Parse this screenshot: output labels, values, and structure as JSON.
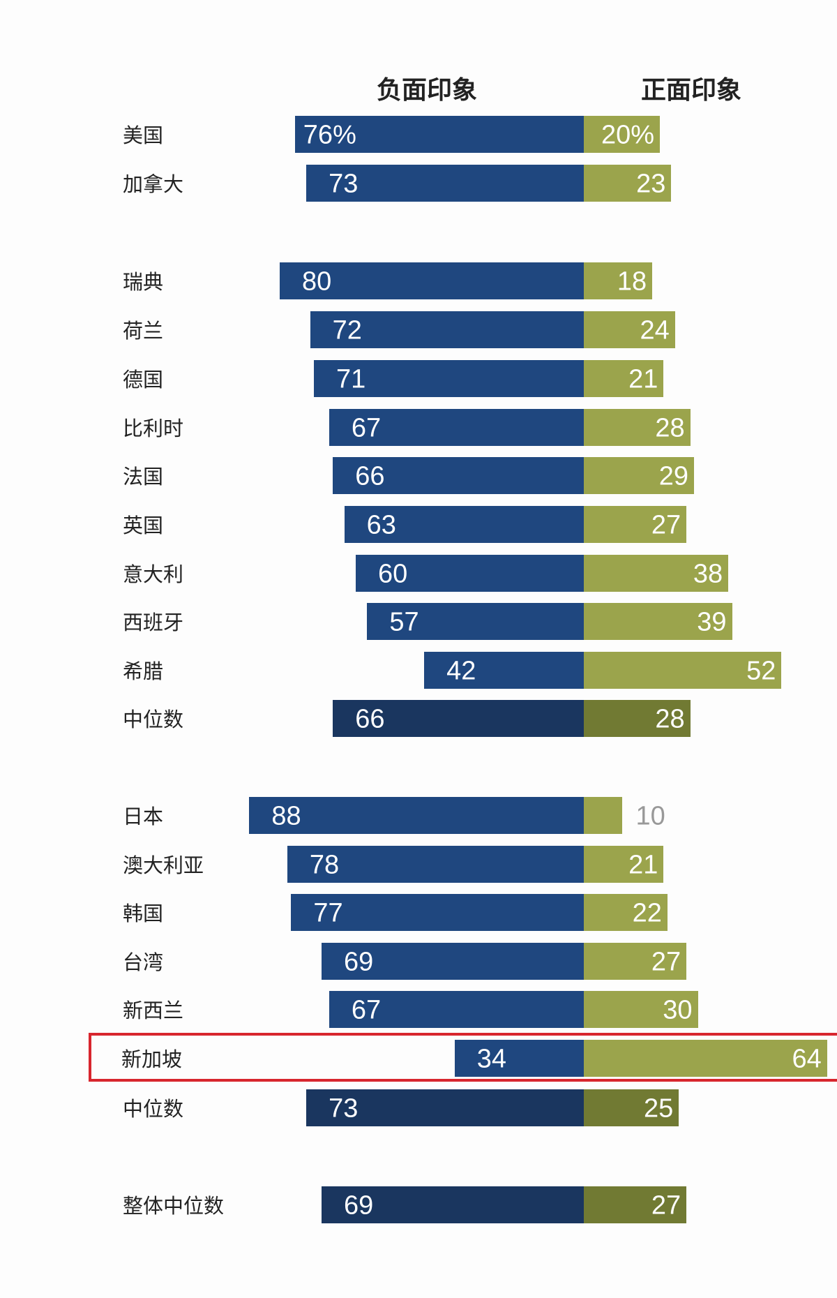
{
  "chart_data": {
    "type": "bar",
    "orientation": "horizontal-diverging",
    "series": [
      {
        "name": "负面印象",
        "color": "#1f477f",
        "median_color": "#1a365f"
      },
      {
        "name": "正面印象",
        "color": "#9ba44c",
        "median_color": "#717a33"
      }
    ],
    "rows": [
      {
        "label": "美国",
        "neg": 76,
        "pos": 20,
        "neg_text": "76%",
        "pos_text": "20%",
        "group": 0
      },
      {
        "label": "加拿大",
        "neg": 73,
        "pos": 23,
        "neg_text": "73",
        "pos_text": "23",
        "group": 0
      },
      {
        "label": "瑞典",
        "neg": 80,
        "pos": 18,
        "neg_text": "80",
        "pos_text": "18",
        "group": 1
      },
      {
        "label": "荷兰",
        "neg": 72,
        "pos": 24,
        "neg_text": "72",
        "pos_text": "24",
        "group": 1
      },
      {
        "label": "德国",
        "neg": 71,
        "pos": 21,
        "neg_text": "71",
        "pos_text": "21",
        "group": 1
      },
      {
        "label": "比利时",
        "neg": 67,
        "pos": 28,
        "neg_text": "67",
        "pos_text": "28",
        "group": 1
      },
      {
        "label": "法国",
        "neg": 66,
        "pos": 29,
        "neg_text": "66",
        "pos_text": "29",
        "group": 1
      },
      {
        "label": "英国",
        "neg": 63,
        "pos": 27,
        "neg_text": "63",
        "pos_text": "27",
        "group": 1
      },
      {
        "label": "意大利",
        "neg": 60,
        "pos": 38,
        "neg_text": "60",
        "pos_text": "38",
        "group": 1
      },
      {
        "label": "西班牙",
        "neg": 57,
        "pos": 39,
        "neg_text": "57",
        "pos_text": "39",
        "group": 1
      },
      {
        "label": "希腊",
        "neg": 42,
        "pos": 52,
        "neg_text": "42",
        "pos_text": "52",
        "group": 1
      },
      {
        "label": "中位数",
        "neg": 66,
        "pos": 28,
        "neg_text": "66",
        "pos_text": "28",
        "group": 1,
        "median": true
      },
      {
        "label": "日本",
        "neg": 88,
        "pos": 10,
        "neg_text": "88",
        "pos_text": "10",
        "group": 2,
        "pos_outside": true
      },
      {
        "label": "澳大利亚",
        "neg": 78,
        "pos": 21,
        "neg_text": "78",
        "pos_text": "21",
        "group": 2
      },
      {
        "label": "韩国",
        "neg": 77,
        "pos": 22,
        "neg_text": "77",
        "pos_text": "22",
        "group": 2
      },
      {
        "label": "台湾",
        "neg": 69,
        "pos": 27,
        "neg_text": "69",
        "pos_text": "27",
        "group": 2
      },
      {
        "label": "新西兰",
        "neg": 67,
        "pos": 30,
        "neg_text": "67",
        "pos_text": "30",
        "group": 2
      },
      {
        "label": "新加坡",
        "neg": 34,
        "pos": 64,
        "neg_text": "34",
        "pos_text": "64",
        "group": 2,
        "highlight": true
      },
      {
        "label": "中位数",
        "neg": 73,
        "pos": 25,
        "neg_text": "73",
        "pos_text": "25",
        "group": 2,
        "median": true
      },
      {
        "label": "整体中位数",
        "neg": 69,
        "pos": 27,
        "neg_text": "69",
        "pos_text": "27",
        "group": 3,
        "median": true
      }
    ],
    "highlight_color": "#d8262e"
  }
}
